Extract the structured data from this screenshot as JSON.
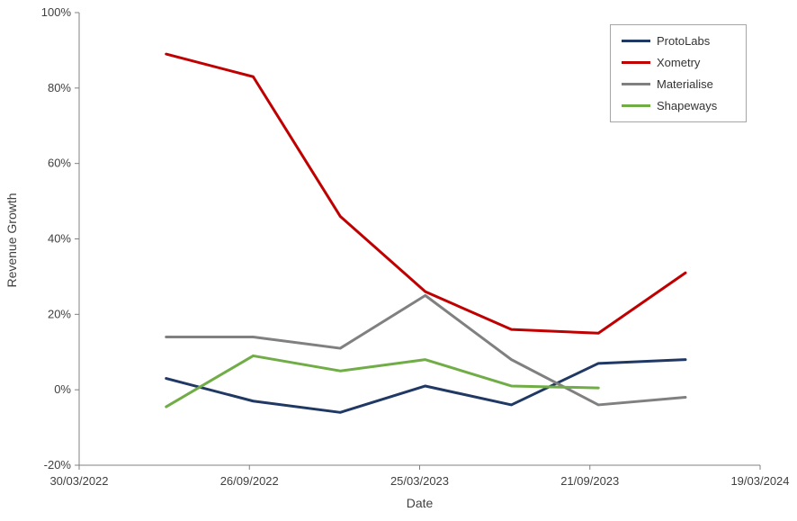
{
  "chart_data": {
    "type": "line",
    "title": "",
    "xlabel": "Date",
    "ylabel": "Revenue Growth",
    "x": [
      "30/06/2022",
      "30/09/2022",
      "31/12/2022",
      "31/03/2023",
      "30/06/2023",
      "30/09/2023",
      "31/12/2023"
    ],
    "x_ticks": [
      "30/03/2022",
      "26/09/2022",
      "25/03/2023",
      "21/09/2023",
      "19/03/2024"
    ],
    "ylim": [
      -20,
      100
    ],
    "y_ticks": [
      100,
      80,
      60,
      40,
      20,
      0,
      -20
    ],
    "y_tick_format": "percent",
    "grid": false,
    "legend_position": "top-right",
    "axis_color": "#808080",
    "label_color": "#404040",
    "series": [
      {
        "name": "ProtoLabs",
        "color": "#203864",
        "values": [
          3,
          -3,
          -6,
          1,
          -4,
          7,
          8
        ]
      },
      {
        "name": "Xometry",
        "color": "#c00000",
        "values": [
          89,
          83,
          46,
          26,
          16,
          15,
          31
        ]
      },
      {
        "name": "Materialise",
        "color": "#808080",
        "values": [
          14,
          14,
          11,
          25,
          8,
          -4,
          -2
        ]
      },
      {
        "name": "Shapeways",
        "color": "#70ad47",
        "values": [
          -4.5,
          9,
          5,
          8,
          1,
          0.5,
          null
        ]
      }
    ]
  }
}
